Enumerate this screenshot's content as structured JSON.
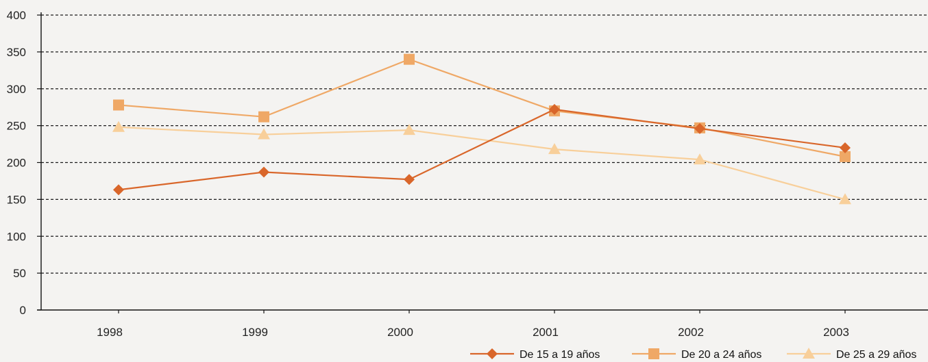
{
  "chart_data": {
    "type": "line",
    "title": "",
    "xlabel": "",
    "ylabel": "",
    "categories": [
      "1998",
      "1999",
      "2000",
      "2001",
      "2002",
      "2003"
    ],
    "yticks": [
      "0",
      "50",
      "100",
      "150",
      "200",
      "250",
      "300",
      "350",
      "400"
    ],
    "ylim": [
      0,
      400
    ],
    "grid": "horizontal dashed",
    "legend_position": "bottom-right",
    "series": [
      {
        "name": "De 15 a 19 años",
        "marker": "diamond",
        "color": "#d9662a",
        "values": [
          163,
          187,
          177,
          272,
          246,
          220
        ]
      },
      {
        "name": "De 20 a 24 años",
        "marker": "square",
        "color": "#efa866",
        "values": [
          278,
          262,
          340,
          270,
          247,
          208
        ]
      },
      {
        "name": "De 25 a 29 años",
        "marker": "triangle",
        "color": "#f8cf9a",
        "values": [
          248,
          238,
          244,
          218,
          204,
          150
        ]
      }
    ]
  }
}
